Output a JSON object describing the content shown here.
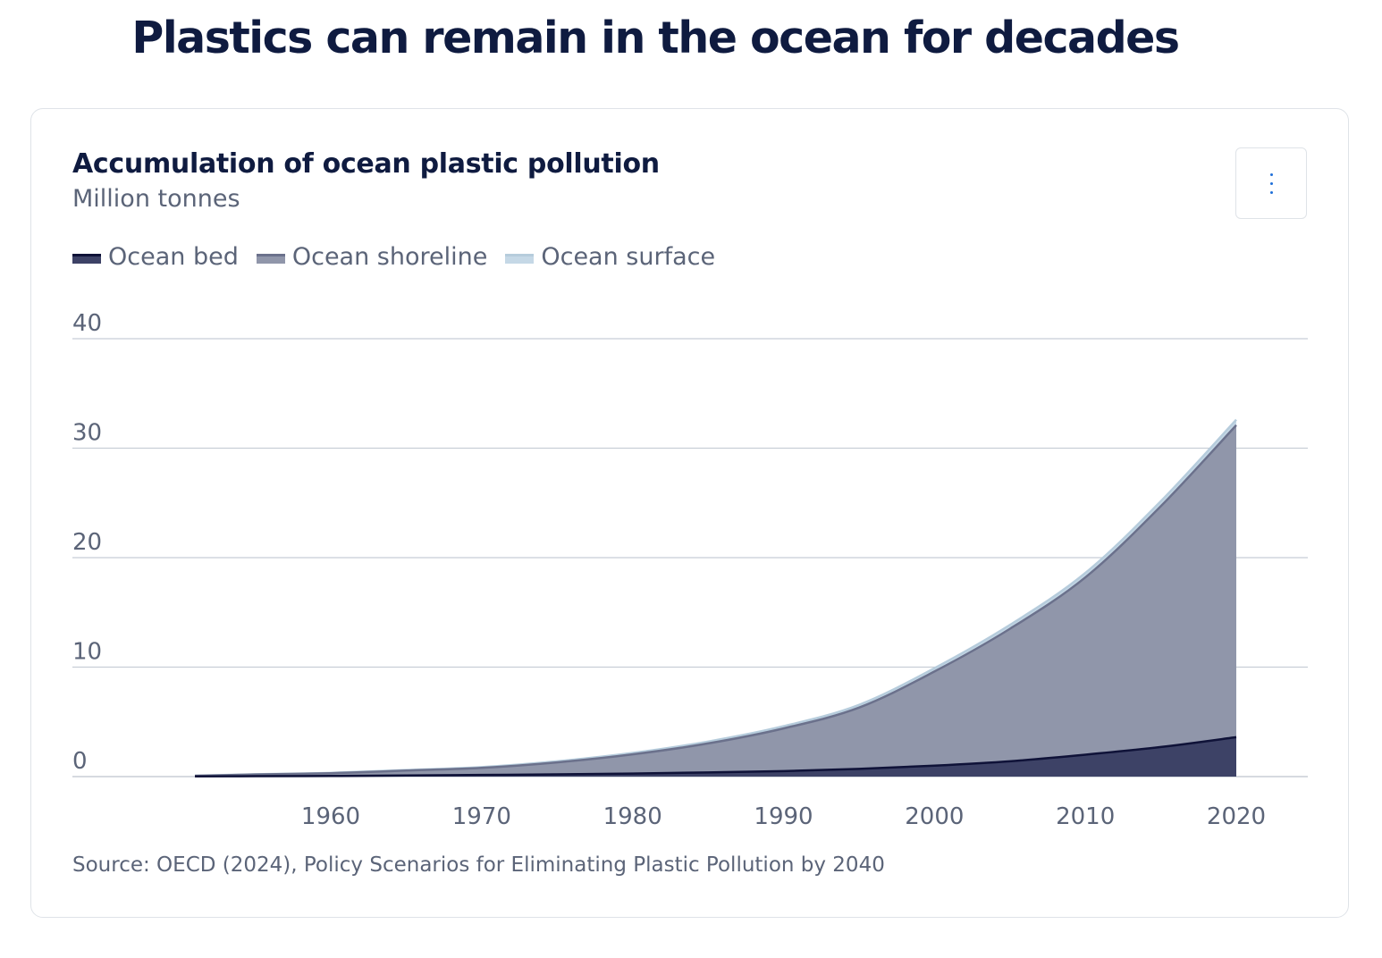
{
  "page": {
    "title": "Plastics can remain in the ocean for decades"
  },
  "card": {
    "menu_icon": "vertical-ellipsis-icon",
    "source": "Source: OECD (2024), Policy Scenarios for Eliminating Plastic Pollution by 2040"
  },
  "chart_data": {
    "type": "area",
    "stacked": true,
    "title": "Accumulation of ocean plastic pollution",
    "subtitle": "Million tonnes",
    "xlabel": "",
    "ylabel": "",
    "x": [
      1951,
      1955,
      1960,
      1965,
      1970,
      1975,
      1980,
      1985,
      1990,
      1995,
      2000,
      2005,
      2010,
      2015,
      2020
    ],
    "x_ticks": [
      "1960",
      "1970",
      "1980",
      "1990",
      "2000",
      "2010",
      "2020"
    ],
    "y_ticks": [
      "0",
      "10",
      "20",
      "30",
      "40"
    ],
    "xlim": [
      1951,
      2024
    ],
    "ylim": [
      0,
      40
    ],
    "grid": true,
    "legend_position": "top-left",
    "series": [
      {
        "name": "Ocean bed",
        "color": "#3d4266",
        "line_color": "#0f1238",
        "values": [
          0.02,
          0.04,
          0.06,
          0.1,
          0.15,
          0.2,
          0.28,
          0.38,
          0.5,
          0.7,
          1.0,
          1.4,
          2.0,
          2.7,
          3.6
        ]
      },
      {
        "name": "Ocean shoreline",
        "color": "#9096aa",
        "line_color": "#6b718c",
        "values": [
          0.05,
          0.15,
          0.25,
          0.45,
          0.65,
          1.1,
          1.75,
          2.65,
          3.9,
          5.6,
          8.6,
          12.1,
          16.2,
          22.0,
          28.5
        ]
      },
      {
        "name": "Ocean surface",
        "color": "#c5d8e6",
        "line_color": "#b6ccdc",
        "values": [
          0.01,
          0.02,
          0.03,
          0.05,
          0.07,
          0.1,
          0.13,
          0.17,
          0.2,
          0.25,
          0.3,
          0.35,
          0.4,
          0.45,
          0.5
        ]
      }
    ]
  }
}
